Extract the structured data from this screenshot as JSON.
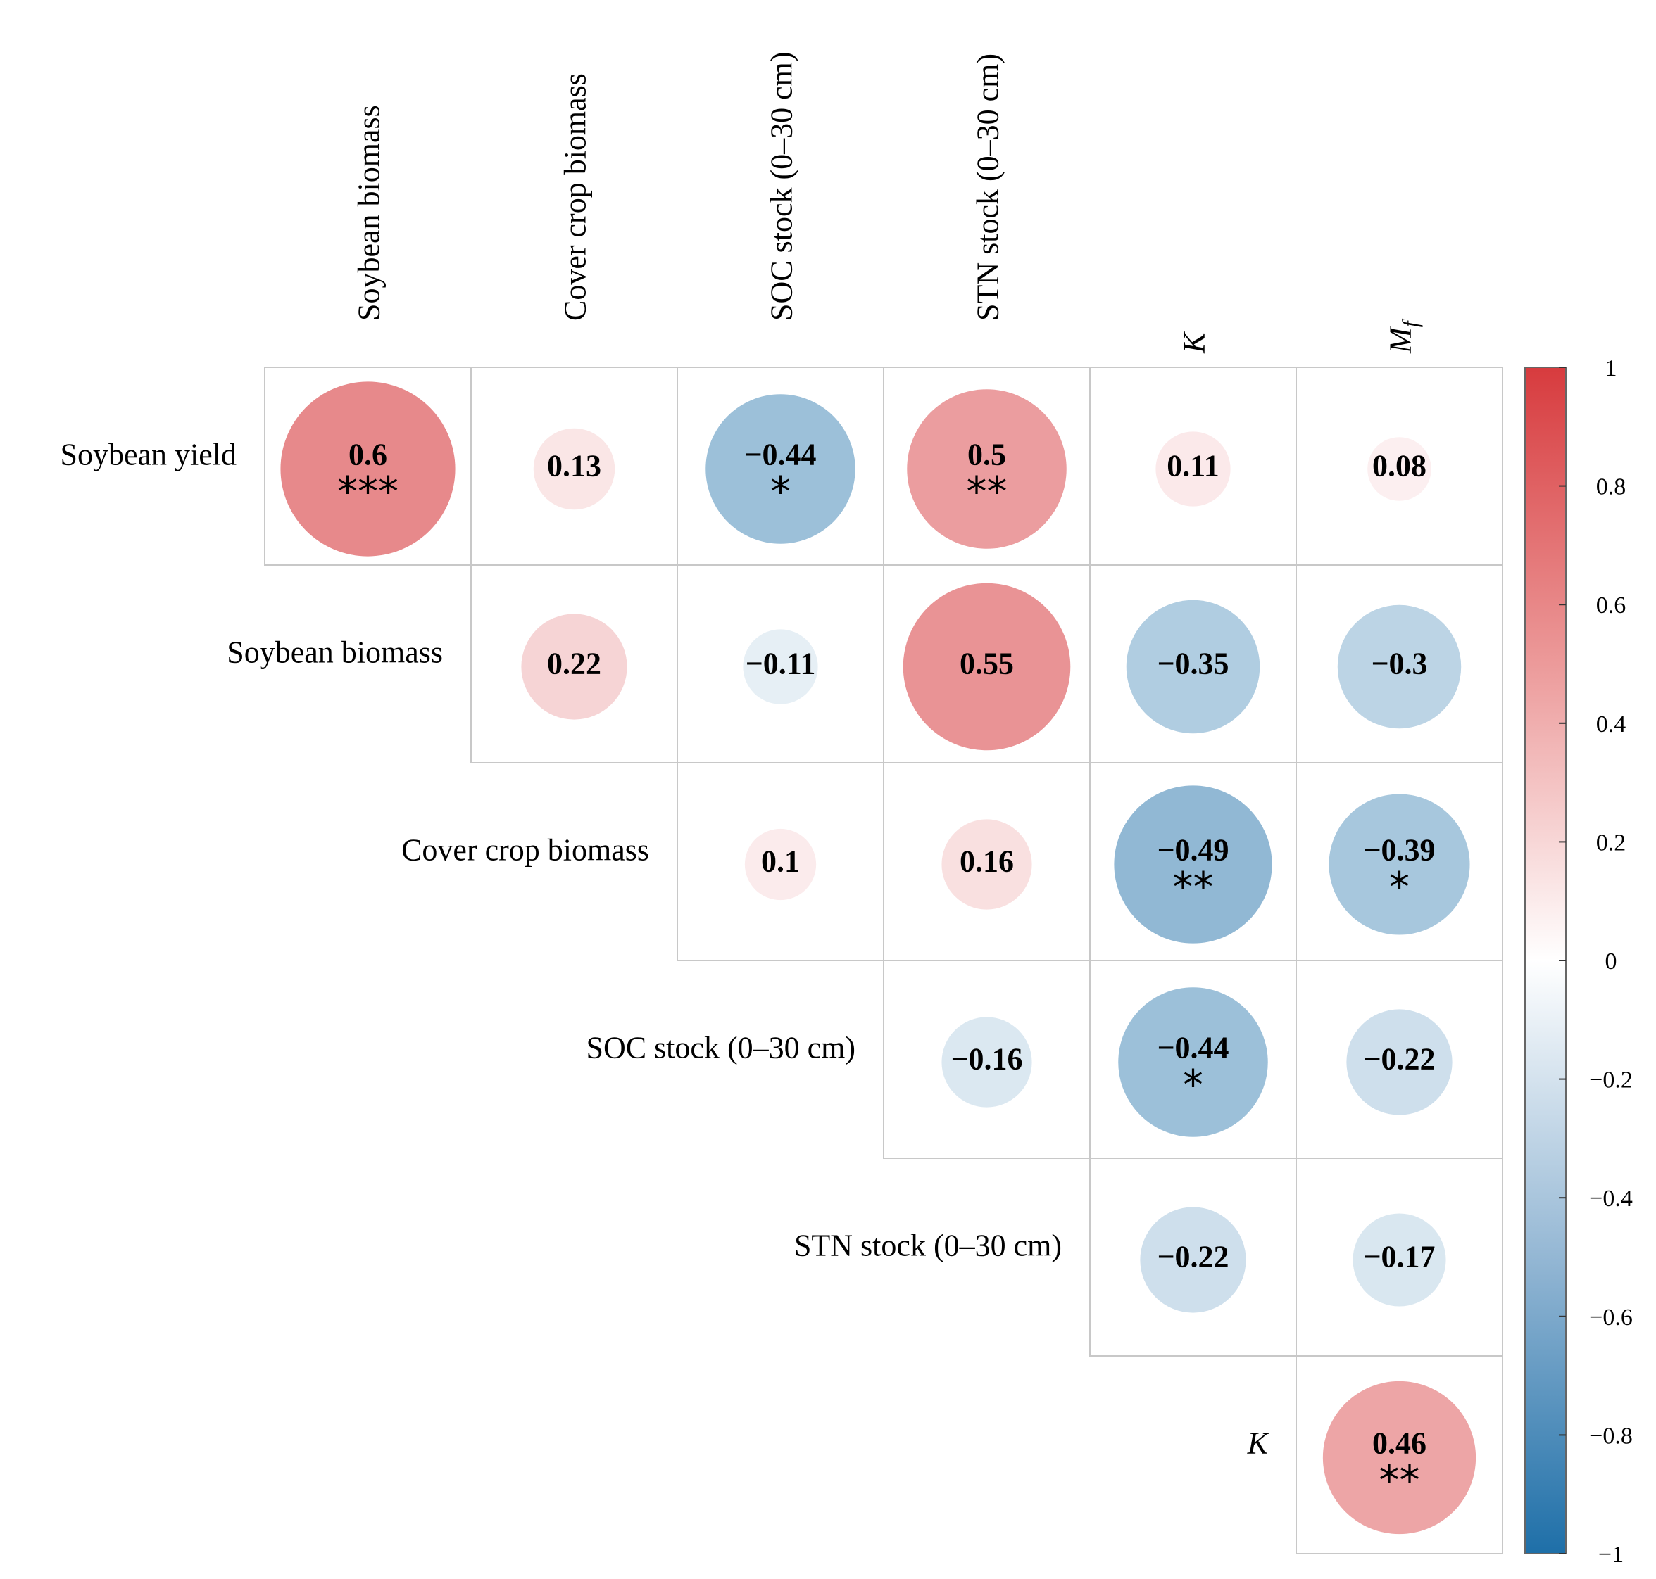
{
  "chart_data": {
    "type": "heatmap",
    "subtype": "correlation-matrix-upper-triangle",
    "row_labels": [
      "Soybean yield",
      "Soybean biomass",
      "Cover crop biomass",
      "SOC stock (0–30 cm)",
      "STN stock (0–30 cm)",
      "K"
    ],
    "col_labels": [
      "Soybean biomass",
      "Cover crop biomass",
      "SOC stock (0–30 cm)",
      "STN stock (0–30 cm)",
      "K",
      "Mf"
    ],
    "cells": [
      {
        "row": 0,
        "col": 0,
        "value": 0.6,
        "label": "0.6",
        "stars": "***"
      },
      {
        "row": 0,
        "col": 1,
        "value": 0.13,
        "label": "0.13",
        "stars": ""
      },
      {
        "row": 0,
        "col": 2,
        "value": -0.44,
        "label": "−0.44",
        "stars": "*"
      },
      {
        "row": 0,
        "col": 3,
        "value": 0.5,
        "label": "0.5",
        "stars": "**"
      },
      {
        "row": 0,
        "col": 4,
        "value": 0.11,
        "label": "0.11",
        "stars": ""
      },
      {
        "row": 0,
        "col": 5,
        "value": 0.08,
        "label": "0.08",
        "stars": ""
      },
      {
        "row": 1,
        "col": 1,
        "value": 0.22,
        "label": "0.22",
        "stars": ""
      },
      {
        "row": 1,
        "col": 2,
        "value": -0.11,
        "label": "−0.11",
        "stars": ""
      },
      {
        "row": 1,
        "col": 3,
        "value": 0.55,
        "label": "0.55",
        "stars": ""
      },
      {
        "row": 1,
        "col": 4,
        "value": -0.35,
        "label": "−0.35",
        "stars": ""
      },
      {
        "row": 1,
        "col": 5,
        "value": -0.3,
        "label": "−0.3",
        "stars": ""
      },
      {
        "row": 2,
        "col": 2,
        "value": 0.1,
        "label": "0.1",
        "stars": ""
      },
      {
        "row": 2,
        "col": 3,
        "value": 0.16,
        "label": "0.16",
        "stars": ""
      },
      {
        "row": 2,
        "col": 4,
        "value": -0.49,
        "label": "−0.49",
        "stars": "**"
      },
      {
        "row": 2,
        "col": 5,
        "value": -0.39,
        "label": "−0.39",
        "stars": "*"
      },
      {
        "row": 3,
        "col": 3,
        "value": -0.16,
        "label": "−0.16",
        "stars": ""
      },
      {
        "row": 3,
        "col": 4,
        "value": -0.44,
        "label": "−0.44",
        "stars": "*"
      },
      {
        "row": 3,
        "col": 5,
        "value": -0.22,
        "label": "−0.22",
        "stars": ""
      },
      {
        "row": 4,
        "col": 4,
        "value": -0.22,
        "label": "−0.22",
        "stars": ""
      },
      {
        "row": 4,
        "col": 5,
        "value": -0.17,
        "label": "−0.17",
        "stars": ""
      },
      {
        "row": 5,
        "col": 5,
        "value": 0.46,
        "label": "0.46",
        "stars": "**"
      }
    ],
    "colorbar": {
      "range": [
        -1,
        1
      ],
      "ticks": [
        1,
        0.8,
        0.6,
        0.4,
        0.2,
        0,
        -0.2,
        -0.4,
        -0.6,
        -0.8,
        -1
      ],
      "tick_labels": [
        "1",
        "0.8",
        "0.6",
        "0.4",
        "0.2",
        "0",
        "−0.2",
        "−0.4",
        "−0.6",
        "−0.8",
        "−1"
      ],
      "colors": {
        "positive": "#d73b3e",
        "zero": "#ffffff",
        "negative": "#1e6fa8"
      }
    }
  }
}
